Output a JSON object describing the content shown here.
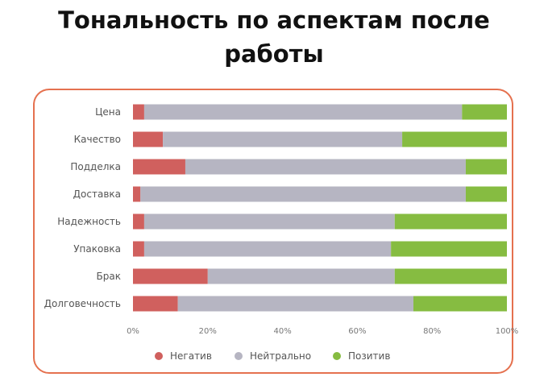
{
  "title_line1": "Тональность по аспектам после",
  "title_line2": "работы",
  "chart_data": {
    "type": "bar",
    "orientation": "horizontal",
    "stacked": "percent",
    "categories": [
      "Цена",
      "Качество",
      "Подделка",
      "Доставка",
      "Надежность",
      "Упаковка",
      "Брак",
      "Долговечность"
    ],
    "series": [
      {
        "name": "Негатив",
        "color": "#d0605e",
        "values": [
          3,
          8,
          14,
          2,
          3,
          3,
          20,
          12
        ]
      },
      {
        "name": "Нейтрально",
        "color": "#b6b5c2",
        "values": [
          85,
          64,
          75,
          87,
          67,
          66,
          50,
          63
        ]
      },
      {
        "name": "Позитив",
        "color": "#86bc41",
        "values": [
          12,
          28,
          11,
          11,
          30,
          31,
          30,
          25
        ]
      }
    ],
    "xlim": [
      0,
      100
    ],
    "xticks": [
      "0%",
      "20%",
      "40%",
      "60%",
      "80%",
      "100%"
    ],
    "legend_position": "bottom",
    "grid": false
  }
}
